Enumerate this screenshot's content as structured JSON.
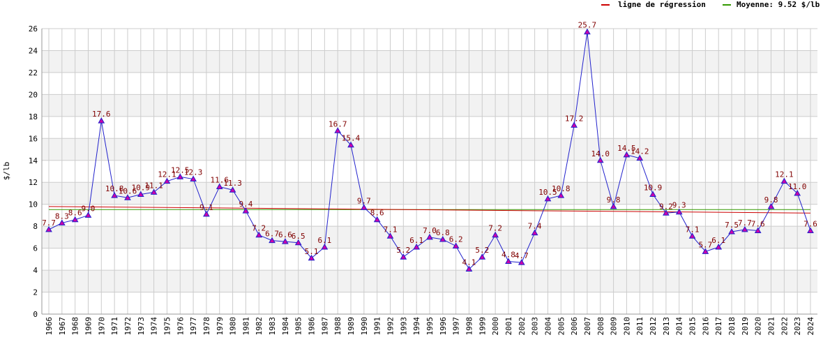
{
  "chart_data": {
    "type": "line",
    "y_label": "$/lb",
    "x": [
      1966,
      1967,
      1968,
      1969,
      1970,
      1971,
      1972,
      1973,
      1974,
      1975,
      1976,
      1977,
      1978,
      1979,
      1980,
      1981,
      1982,
      1983,
      1984,
      1985,
      1986,
      1987,
      1988,
      1989,
      1990,
      1991,
      1992,
      1993,
      1994,
      1995,
      1996,
      1997,
      1998,
      1999,
      2000,
      2001,
      2002,
      2003,
      2004,
      2005,
      2006,
      2007,
      2008,
      2009,
      2010,
      2011,
      2012,
      2013,
      2014,
      2015,
      2016,
      2017,
      2018,
      2019,
      2020,
      2021,
      2022,
      2023,
      2024
    ],
    "series": [
      {
        "color": "#2222cc",
        "marker_color": "#cc00aa",
        "values": [
          7.7,
          8.3,
          8.6,
          9.0,
          17.6,
          10.8,
          10.6,
          10.9,
          11.1,
          12.1,
          12.5,
          12.3,
          9.1,
          11.6,
          11.3,
          9.4,
          7.2,
          6.7,
          6.6,
          6.5,
          5.1,
          6.1,
          16.7,
          15.4,
          9.7,
          8.6,
          7.1,
          5.2,
          6.1,
          7.0,
          6.8,
          6.2,
          4.1,
          5.2,
          7.2,
          4.8,
          4.7,
          7.4,
          10.5,
          10.8,
          17.2,
          25.7,
          14.0,
          9.8,
          14.5,
          14.2,
          10.9,
          9.2,
          9.3,
          7.1,
          5.7,
          6.1,
          7.5,
          7.7,
          7.6,
          9.8,
          12.1,
          11.0,
          7.6
        ],
        "value_labels": [
          "7.7",
          "8.3",
          "8.6",
          "9.0",
          "17.6",
          "10.8",
          "10.6",
          "10.9",
          "11.1",
          "12.1",
          "12.5",
          "12.3",
          "9.1",
          "11.6",
          "11.3",
          "9.4",
          "7.2",
          "6.7",
          "6.6",
          "6.5",
          "5.1",
          "6.1",
          "16.7",
          "15.4",
          "9.7",
          "8.6",
          "7.1",
          "5.2",
          "6.1",
          "7.0",
          "6.8",
          "6.2",
          "4.1",
          "5.2",
          "7.2",
          "4.8",
          "4.7",
          "7.4",
          "10.5",
          "10.8",
          "17.2",
          "25.7",
          "14.0",
          "9.8",
          "14.5",
          "14.2",
          "10.9",
          "9.2",
          "9.3",
          "7.1",
          "5.7",
          "6.1",
          "7.5",
          "7.7",
          "7.6",
          "9.8",
          "12.1",
          "11.0",
          "7.6"
        ]
      }
    ],
    "regression": {
      "name": "ligne de régression",
      "color": "#cc0000",
      "values": [
        9.8,
        9.2
      ]
    },
    "mean": {
      "name": "Moyenne: 9.52 $/lb",
      "color": "#339900",
      "value": 9.52
    },
    "ylim": [
      0,
      26
    ],
    "yticks": [
      0,
      2,
      4,
      6,
      8,
      10,
      12,
      14,
      16,
      18,
      20,
      22,
      24,
      26
    ],
    "grid": true
  }
}
